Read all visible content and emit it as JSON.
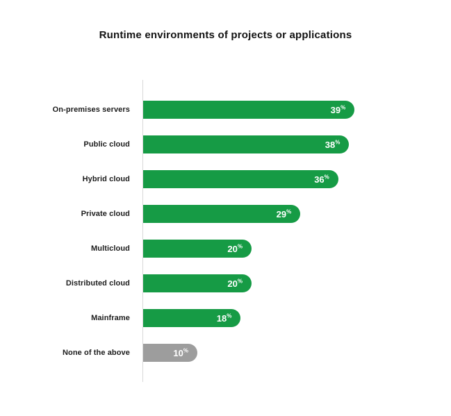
{
  "title": "Runtime environments of projects or applications",
  "colors": {
    "bar_green": "#169b45",
    "bar_gray": "#9d9d9d",
    "axis_line": "#d8d8d8",
    "label_text": "#1c1c1c",
    "value_text": "#ffffff"
  },
  "chart_data": {
    "type": "bar",
    "orientation": "horizontal",
    "title": "Runtime environments of projects or applications",
    "categories": [
      "On-premises servers",
      "Public cloud",
      "Hybrid cloud",
      "Private cloud",
      "Multicloud",
      "Distributed cloud",
      "Mainframe",
      "None of the above"
    ],
    "values": [
      39,
      38,
      36,
      29,
      20,
      20,
      18,
      10
    ],
    "value_suffix": "%",
    "bar_colors": [
      "#169b45",
      "#169b45",
      "#169b45",
      "#169b45",
      "#169b45",
      "#169b45",
      "#169b45",
      "#9d9d9d"
    ],
    "xlim": [
      0,
      40
    ],
    "xlabel": "",
    "ylabel": "",
    "grid": false,
    "legend": false,
    "data_labels": "inside-end"
  }
}
